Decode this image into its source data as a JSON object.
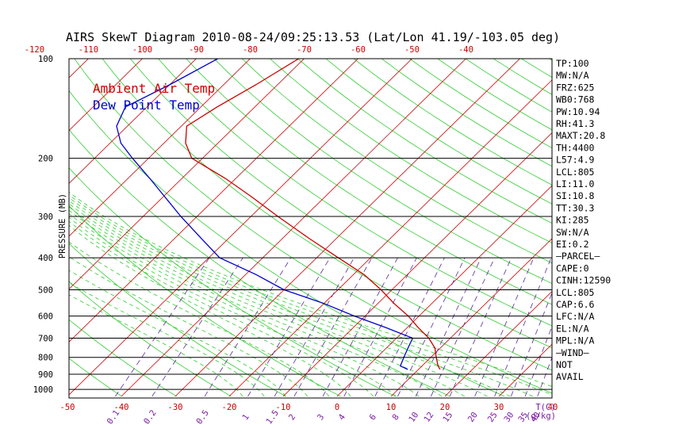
{
  "chart_data": {
    "type": "line",
    "title": "AIRS SkewT Diagram 2010-08-24/09:25:13.53 (Lat/Lon 41.19/-103.05 deg)",
    "ylabel": "PRESSURE (MB)",
    "bottom_axis_unit": "T(C)",
    "mixing_ratio_unit": "(g/kg)",
    "y_scale": "log",
    "ylim": [
      1050,
      100
    ],
    "pressure_ticks": [
      {
        "value": 100,
        "label": "100"
      },
      {
        "value": 200,
        "label": "200"
      },
      {
        "value": 300,
        "label": "300"
      },
      {
        "value": 400,
        "label": "400"
      },
      {
        "value": 500,
        "label": "500"
      },
      {
        "value": 600,
        "label": "600"
      },
      {
        "value": 700,
        "label": "700"
      },
      {
        "value": 800,
        "label": "800"
      },
      {
        "value": 900,
        "label": "900"
      },
      {
        "value": 1000,
        "label": "1000"
      }
    ],
    "bottom_temp_ticks": [
      {
        "value": -50,
        "label": "-50"
      },
      {
        "value": -40,
        "label": "-40"
      },
      {
        "value": -30,
        "label": "-30"
      },
      {
        "value": -20,
        "label": "-20"
      },
      {
        "value": -10,
        "label": "-10"
      },
      {
        "value": 0,
        "label": "0"
      },
      {
        "value": 10,
        "label": "10"
      },
      {
        "value": 20,
        "label": "20"
      },
      {
        "value": 30,
        "label": "30"
      },
      {
        "value": 40,
        "label": "40"
      }
    ],
    "top_temp_ticks": [
      {
        "value": -120,
        "label": "-120"
      },
      {
        "value": -110,
        "label": "-110"
      },
      {
        "value": -100,
        "label": "-100"
      },
      {
        "value": -90,
        "label": "-90"
      },
      {
        "value": -80,
        "label": "-80"
      },
      {
        "value": -70,
        "label": "-70"
      },
      {
        "value": -60,
        "label": "-60"
      },
      {
        "value": -50,
        "label": "-50"
      },
      {
        "value": -40,
        "label": "-40"
      }
    ],
    "mixing_ratio_ticks": [
      {
        "value": 0.1,
        "label": "0.1"
      },
      {
        "value": 0.2,
        "label": "0.2"
      },
      {
        "value": 0.5,
        "label": "0.5"
      },
      {
        "value": 1,
        "label": "1"
      },
      {
        "value": 1.5,
        "label": "1.5"
      },
      {
        "value": 2,
        "label": "2"
      },
      {
        "value": 3,
        "label": "3"
      },
      {
        "value": 4,
        "label": "4"
      },
      {
        "value": 6,
        "label": "6"
      },
      {
        "value": 8,
        "label": "8"
      },
      {
        "value": 10,
        "label": "10"
      },
      {
        "value": 12,
        "label": "12"
      },
      {
        "value": 15,
        "label": "15"
      },
      {
        "value": 20,
        "label": "20"
      },
      {
        "value": 25,
        "label": "25"
      },
      {
        "value": 30,
        "label": "30"
      },
      {
        "value": 35,
        "label": "35"
      },
      {
        "value": 40,
        "label": "40"
      }
    ],
    "series": [
      {
        "name": "Ambient Air Temp",
        "color": "#cc0000",
        "points": [
          {
            "p": 100,
            "t": -71
          },
          {
            "p": 120,
            "t": -74
          },
          {
            "p": 140,
            "t": -77
          },
          {
            "p": 160,
            "t": -79
          },
          {
            "p": 180,
            "t": -76
          },
          {
            "p": 200,
            "t": -72
          },
          {
            "p": 230,
            "t": -62
          },
          {
            "p": 260,
            "t": -54
          },
          {
            "p": 300,
            "t": -45
          },
          {
            "p": 350,
            "t": -35
          },
          {
            "p": 400,
            "t": -26
          },
          {
            "p": 450,
            "t": -18
          },
          {
            "p": 500,
            "t": -12
          },
          {
            "p": 550,
            "t": -7
          },
          {
            "p": 600,
            "t": -2
          },
          {
            "p": 650,
            "t": 2
          },
          {
            "p": 700,
            "t": 6
          },
          {
            "p": 750,
            "t": 9
          },
          {
            "p": 800,
            "t": 11
          },
          {
            "p": 850,
            "t": 13
          },
          {
            "p": 870,
            "t": 14
          }
        ]
      },
      {
        "name": "Dew Point Temp",
        "color": "#0000cc",
        "points": [
          {
            "p": 100,
            "t": -86
          },
          {
            "p": 120,
            "t": -90
          },
          {
            "p": 140,
            "t": -94
          },
          {
            "p": 160,
            "t": -92
          },
          {
            "p": 180,
            "t": -88
          },
          {
            "p": 200,
            "t": -83
          },
          {
            "p": 230,
            "t": -76
          },
          {
            "p": 260,
            "t": -70
          },
          {
            "p": 300,
            "t": -63
          },
          {
            "p": 350,
            "t": -55
          },
          {
            "p": 400,
            "t": -48
          },
          {
            "p": 450,
            "t": -38
          },
          {
            "p": 500,
            "t": -30
          },
          {
            "p": 550,
            "t": -20
          },
          {
            "p": 600,
            "t": -12
          },
          {
            "p": 650,
            "t": -4
          },
          {
            "p": 700,
            "t": 3
          },
          {
            "p": 750,
            "t": 4
          },
          {
            "p": 800,
            "t": 5
          },
          {
            "p": 850,
            "t": 6
          },
          {
            "p": 870,
            "t": 8
          }
        ]
      }
    ],
    "legend": [
      {
        "label": "Ambient Air Temp",
        "color": "#cc0000"
      },
      {
        "label": "Dew Point Temp",
        "color": "#0000cc"
      }
    ],
    "legend_position": "top-left",
    "indices": [
      "TP:100",
      "MW:N/A",
      "FRZ:625",
      "WB0:768",
      "PW:10.94",
      "RH:41.3",
      "MAXT:20.8",
      "TH:4400",
      "L57:4.9",
      "LCL:805",
      "LI:11.0",
      "SI:10.8",
      "TT:30.3",
      "KI:285",
      "SW:N/A",
      "EI:0.2",
      "—PARCEL—",
      "CAPE:0",
      "CINH:12590",
      "LCL:805",
      "CAP:6.6",
      "LFC:N/A",
      "EL:N/A",
      "MPL:N/A",
      "—WIND—",
      "NOT",
      "AVAIL"
    ],
    "colors": {
      "isotherm": "#cc0000",
      "dry_adiabat": "#33cc33",
      "moist_adiabat": "#33cc33",
      "mixing_ratio": "#5a2a99",
      "axis_red": "#cc0000",
      "axis_purple": "#7a1fa0",
      "isobar": "#000000"
    }
  }
}
